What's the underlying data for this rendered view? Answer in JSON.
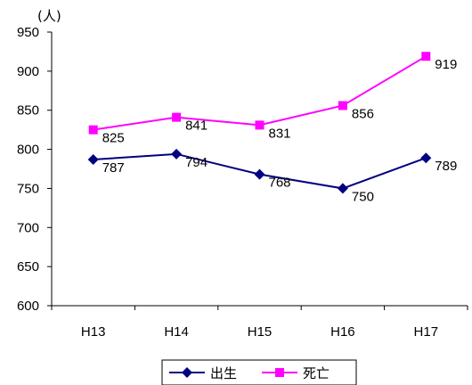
{
  "chart_data": {
    "type": "line",
    "unit_label": "(人)",
    "categories": [
      "H13",
      "H14",
      "H15",
      "H16",
      "H17"
    ],
    "ylim": [
      600,
      950
    ],
    "yticks": [
      600,
      650,
      700,
      750,
      800,
      850,
      900,
      950
    ],
    "series": [
      {
        "name": "出生",
        "values": [
          787,
          794,
          768,
          750,
          789
        ],
        "color": "#000080",
        "marker": "diamond"
      },
      {
        "name": "死亡",
        "values": [
          825,
          841,
          831,
          856,
          919
        ],
        "color": "#ff00ff",
        "marker": "square"
      }
    ],
    "legend_position": "bottom",
    "grid": false
  }
}
